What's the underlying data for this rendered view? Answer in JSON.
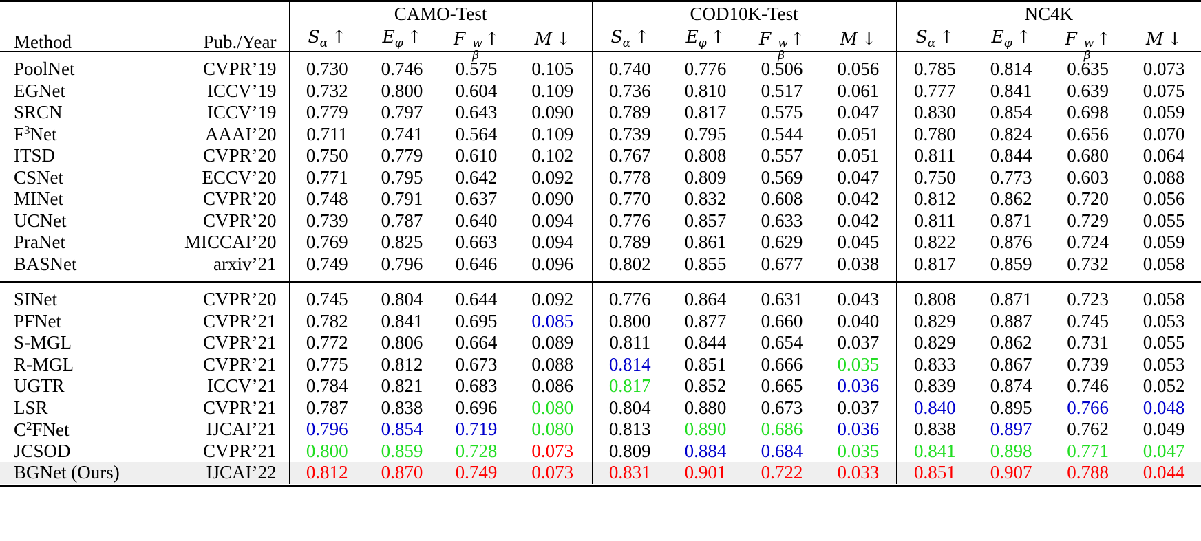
{
  "headers": {
    "method": "Method",
    "pub": "Pub./Year",
    "groups": [
      "CAMO-Test",
      "COD10K-Test",
      "NC4K"
    ],
    "metrics": [
      {
        "sym": "S",
        "sub": "α",
        "arrow": "↑"
      },
      {
        "sym": "E",
        "sub": "φ",
        "arrow": "↑"
      },
      {
        "sym": "F",
        "sub": "β",
        "sup": "w",
        "arrow": "↑"
      },
      {
        "sym": "M",
        "arrow": "↓"
      }
    ]
  },
  "group1": [
    {
      "method": "PoolNet",
      "pub": "CVPR’19",
      "values": [
        "0.730",
        "0.746",
        "0.575",
        "0.105",
        "0.740",
        "0.776",
        "0.506",
        "0.056",
        "0.785",
        "0.814",
        "0.635",
        "0.073"
      ]
    },
    {
      "method": "EGNet",
      "pub": "ICCV’19",
      "values": [
        "0.732",
        "0.800",
        "0.604",
        "0.109",
        "0.736",
        "0.810",
        "0.517",
        "0.061",
        "0.777",
        "0.841",
        "0.639",
        "0.075"
      ]
    },
    {
      "method": "SRCN",
      "pub": "ICCV’19",
      "values": [
        "0.779",
        "0.797",
        "0.643",
        "0.090",
        "0.789",
        "0.817",
        "0.575",
        "0.047",
        "0.830",
        "0.854",
        "0.698",
        "0.059"
      ]
    },
    {
      "method": "F",
      "method_sup": "3",
      "method_rest": "Net",
      "pub": "AAAI’20",
      "values": [
        "0.711",
        "0.741",
        "0.564",
        "0.109",
        "0.739",
        "0.795",
        "0.544",
        "0.051",
        "0.780",
        "0.824",
        "0.656",
        "0.070"
      ]
    },
    {
      "method": "ITSD",
      "pub": "CVPR’20",
      "values": [
        "0.750",
        "0.779",
        "0.610",
        "0.102",
        "0.767",
        "0.808",
        "0.557",
        "0.051",
        "0.811",
        "0.844",
        "0.680",
        "0.064"
      ]
    },
    {
      "method": "CSNet",
      "pub": "ECCV’20",
      "values": [
        "0.771",
        "0.795",
        "0.642",
        "0.092",
        "0.778",
        "0.809",
        "0.569",
        "0.047",
        "0.750",
        "0.773",
        "0.603",
        "0.088"
      ]
    },
    {
      "method": "MINet",
      "pub": "CVPR’20",
      "values": [
        "0.748",
        "0.791",
        "0.637",
        "0.090",
        "0.770",
        "0.832",
        "0.608",
        "0.042",
        "0.812",
        "0.862",
        "0.720",
        "0.056"
      ]
    },
    {
      "method": "UCNet",
      "pub": "CVPR’20",
      "values": [
        "0.739",
        "0.787",
        "0.640",
        "0.094",
        "0.776",
        "0.857",
        "0.633",
        "0.042",
        "0.811",
        "0.871",
        "0.729",
        "0.055"
      ]
    },
    {
      "method": "PraNet",
      "pub": "MICCAI’20",
      "values": [
        "0.769",
        "0.825",
        "0.663",
        "0.094",
        "0.789",
        "0.861",
        "0.629",
        "0.045",
        "0.822",
        "0.876",
        "0.724",
        "0.059"
      ]
    },
    {
      "method": "BASNet",
      "pub": "arxiv’21",
      "values": [
        "0.749",
        "0.796",
        "0.646",
        "0.096",
        "0.802",
        "0.855",
        "0.677",
        "0.038",
        "0.817",
        "0.859",
        "0.732",
        "0.058"
      ]
    }
  ],
  "group2": [
    {
      "method": "SINet",
      "pub": "CVPR’20",
      "values": [
        "0.745",
        "0.804",
        "0.644",
        "0.092",
        "0.776",
        "0.864",
        "0.631",
        "0.043",
        "0.808",
        "0.871",
        "0.723",
        "0.058"
      ],
      "colors": {}
    },
    {
      "method": "PFNet",
      "pub": "CVPR’21",
      "values": [
        "0.782",
        "0.841",
        "0.695",
        "0.085",
        "0.800",
        "0.877",
        "0.660",
        "0.040",
        "0.829",
        "0.887",
        "0.745",
        "0.053"
      ],
      "colors": {
        "3": "blue"
      }
    },
    {
      "method": "S-MGL",
      "pub": "CVPR’21",
      "values": [
        "0.772",
        "0.806",
        "0.664",
        "0.089",
        "0.811",
        "0.844",
        "0.654",
        "0.037",
        "0.829",
        "0.862",
        "0.731",
        "0.055"
      ],
      "colors": {}
    },
    {
      "method": "R-MGL",
      "pub": "CVPR’21",
      "values": [
        "0.775",
        "0.812",
        "0.673",
        "0.088",
        "0.814",
        "0.851",
        "0.666",
        "0.035",
        "0.833",
        "0.867",
        "0.739",
        "0.053"
      ],
      "colors": {
        "4": "blue",
        "7": "green"
      }
    },
    {
      "method": "UGTR",
      "pub": "ICCV’21",
      "values": [
        "0.784",
        "0.821",
        "0.683",
        "0.086",
        "0.817",
        "0.852",
        "0.665",
        "0.036",
        "0.839",
        "0.874",
        "0.746",
        "0.052"
      ],
      "colors": {
        "4": "green",
        "7": "blue"
      }
    },
    {
      "method": "LSR",
      "pub": "CVPR’21",
      "values": [
        "0.787",
        "0.838",
        "0.696",
        "0.080",
        "0.804",
        "0.880",
        "0.673",
        "0.037",
        "0.840",
        "0.895",
        "0.766",
        "0.048"
      ],
      "colors": {
        "3": "green",
        "8": "blue",
        "10": "blue",
        "11": "blue"
      }
    },
    {
      "method": "C",
      "method_sup": "2",
      "method_rest": "FNet",
      "pub": "IJCAI’21",
      "values": [
        "0.796",
        "0.854",
        "0.719",
        "0.080",
        "0.813",
        "0.890",
        "0.686",
        "0.036",
        "0.838",
        "0.897",
        "0.762",
        "0.049"
      ],
      "colors": {
        "0": "blue",
        "1": "blue",
        "2": "blue",
        "3": "green",
        "5": "green",
        "6": "green",
        "7": "blue",
        "9": "blue"
      }
    },
    {
      "method": "JCSOD",
      "pub": "CVPR’21",
      "values": [
        "0.800",
        "0.859",
        "0.728",
        "0.073",
        "0.809",
        "0.884",
        "0.684",
        "0.035",
        "0.841",
        "0.898",
        "0.771",
        "0.047"
      ],
      "colors": {
        "0": "green",
        "1": "green",
        "2": "green",
        "3": "red",
        "5": "blue",
        "6": "blue",
        "7": "green",
        "8": "green",
        "9": "green",
        "10": "green",
        "11": "green"
      }
    },
    {
      "method": "BGNet (Ours)",
      "pub": "IJCAI’22",
      "values": [
        "0.812",
        "0.870",
        "0.749",
        "0.073",
        "0.831",
        "0.901",
        "0.722",
        "0.033",
        "0.851",
        "0.907",
        "0.788",
        "0.044"
      ],
      "colors": {
        "0": "red",
        "1": "red",
        "2": "red",
        "3": "red",
        "4": "red",
        "5": "red",
        "6": "red",
        "7": "red",
        "8": "red",
        "9": "red",
        "10": "red",
        "11": "red"
      },
      "highlight": true
    }
  ]
}
